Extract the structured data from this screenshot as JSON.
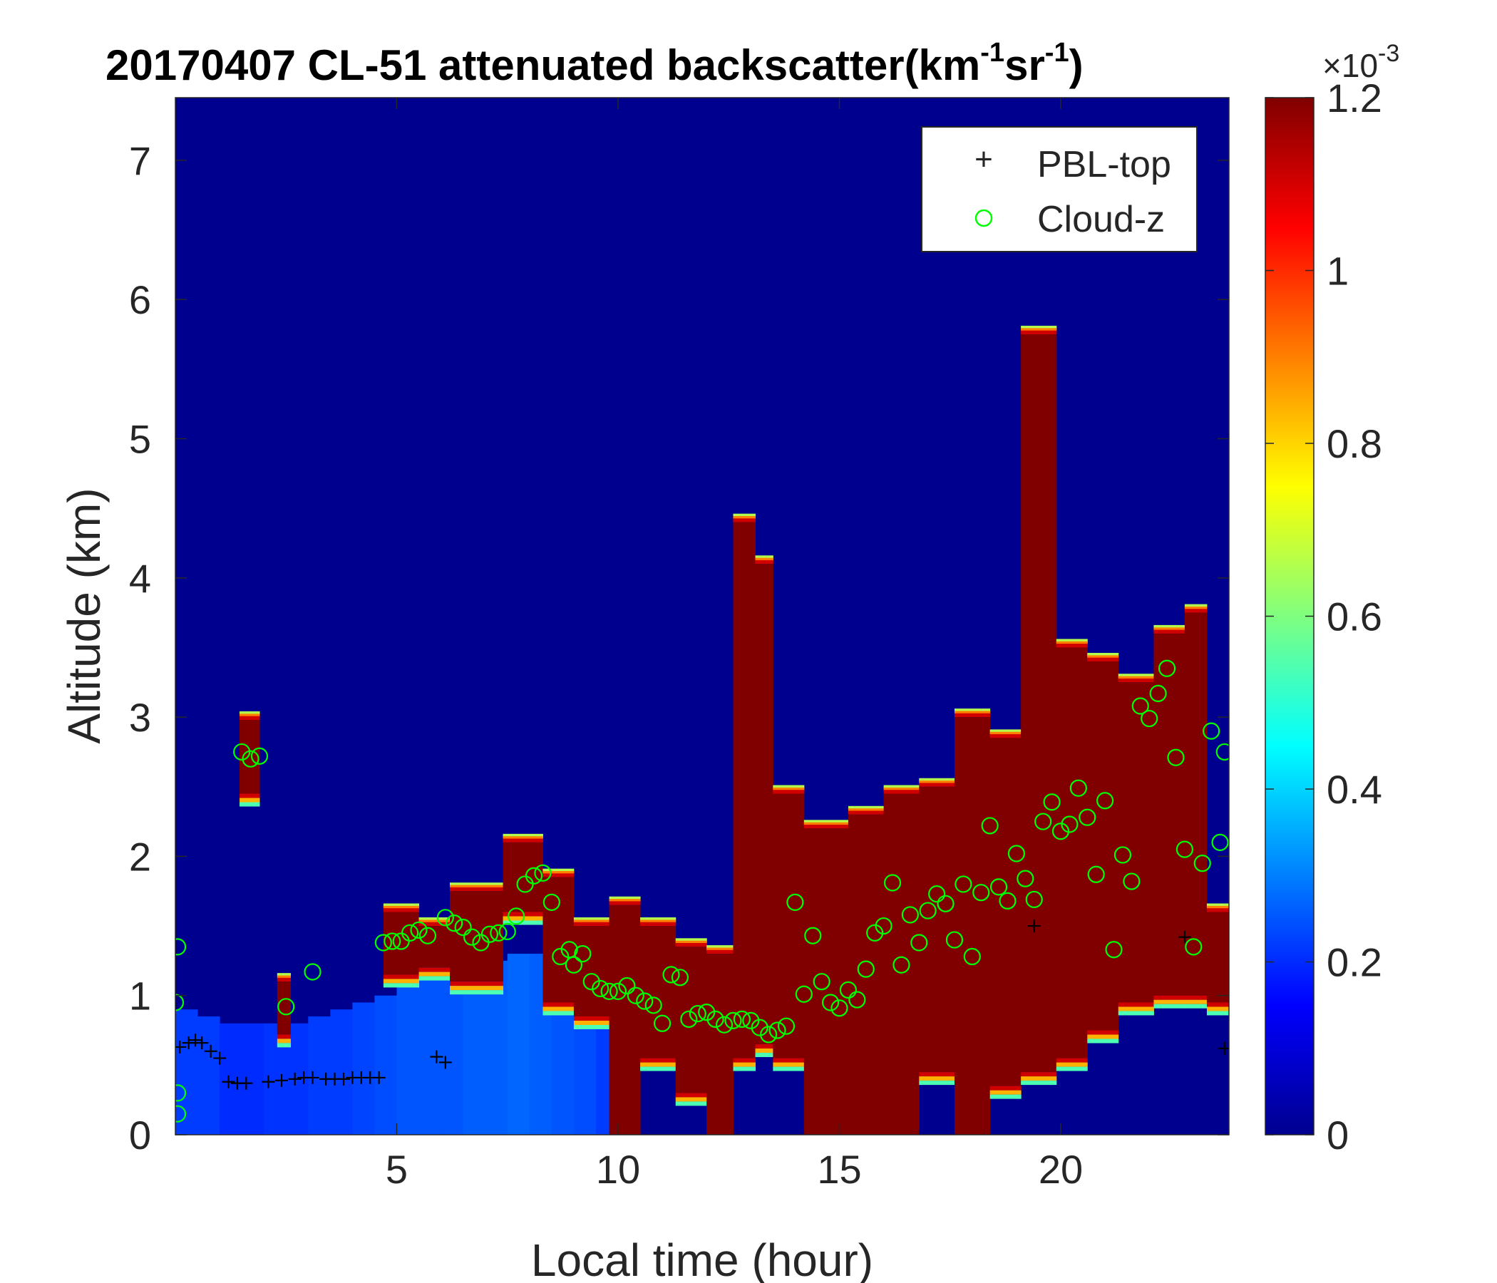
{
  "chart_data": {
    "type": "heatmap",
    "title_main": "20170407  CL-51 attenuated backscatter(km",
    "title_sup1": "-1",
    "title_mid": "sr",
    "title_sup2": "-1",
    "title_end": ")",
    "xlabel": "Local time (hour)",
    "ylabel": "Altitude (km)",
    "xlim": [
      0,
      23.8
    ],
    "ylim": [
      0,
      7.45
    ],
    "x_ticks": [
      5,
      10,
      15,
      20
    ],
    "y_ticks": [
      0,
      1,
      2,
      3,
      4,
      5,
      6,
      7
    ],
    "x_tick_labels": [
      "5",
      "10",
      "15",
      "20"
    ],
    "y_tick_labels": [
      "0",
      "1",
      "2",
      "3",
      "4",
      "5",
      "6",
      "7"
    ],
    "colorbar": {
      "min": 0,
      "max": 1.2,
      "colormap": "jet",
      "ticks": [
        0,
        0.2,
        0.4,
        0.6,
        0.8,
        1.0,
        1.2
      ],
      "tick_labels": [
        "0",
        "0.2",
        "0.4",
        "0.6",
        "0.8",
        "1",
        "1.2"
      ],
      "multiplier_base": "×10",
      "multiplier_exp": "-3"
    },
    "legend": {
      "placement": "top-right",
      "entries": [
        {
          "label": "PBL-top",
          "marker": "+",
          "color": "#000000"
        },
        {
          "label": "Cloud-z",
          "marker": "o",
          "color": "#00ff00"
        }
      ]
    },
    "background_level": 0.04,
    "aerosol_layer": [
      [
        0.0,
        0.9,
        0.22
      ],
      [
        0.5,
        0.85,
        0.22
      ],
      [
        1.0,
        0.8,
        0.2
      ],
      [
        1.5,
        0.8,
        0.2
      ],
      [
        2.0,
        0.8,
        0.21
      ],
      [
        2.5,
        0.8,
        0.21
      ],
      [
        3.0,
        0.85,
        0.22
      ],
      [
        3.5,
        0.9,
        0.22
      ],
      [
        4.0,
        0.95,
        0.23
      ],
      [
        4.5,
        1.0,
        0.24
      ],
      [
        5.0,
        1.1,
        0.25
      ],
      [
        5.5,
        1.2,
        0.25
      ],
      [
        6.0,
        1.25,
        0.25
      ],
      [
        6.5,
        1.25,
        0.26
      ],
      [
        7.0,
        1.25,
        0.26
      ],
      [
        7.5,
        1.3,
        0.27
      ],
      [
        8.0,
        1.3,
        0.26
      ],
      [
        8.5,
        1.2,
        0.25
      ],
      [
        9.0,
        1.0,
        0.24
      ],
      [
        9.5,
        0.8,
        0.22
      ],
      [
        10.0,
        0.0,
        0.0
      ]
    ],
    "high_backscatter_regions": [
      {
        "x0": 1.45,
        "x1": 1.9,
        "y0": 2.45,
        "y1": 2.98
      },
      {
        "x0": 2.3,
        "x1": 2.6,
        "y0": 0.72,
        "y1": 1.1
      },
      {
        "x0": 4.7,
        "x1": 5.5,
        "y0": 1.15,
        "y1": 1.6
      },
      {
        "x0": 5.5,
        "x1": 6.2,
        "y0": 1.2,
        "y1": 1.5
      },
      {
        "x0": 6.2,
        "x1": 7.4,
        "y0": 1.1,
        "y1": 1.75
      },
      {
        "x0": 7.4,
        "x1": 8.3,
        "y0": 1.6,
        "y1": 2.1
      },
      {
        "x0": 8.3,
        "x1": 9.0,
        "y0": 0.95,
        "y1": 1.85
      },
      {
        "x0": 9.0,
        "x1": 9.8,
        "y0": 0.85,
        "y1": 1.5
      },
      {
        "x0": 9.8,
        "x1": 10.5,
        "y0": 0.0,
        "y1": 1.65
      },
      {
        "x0": 10.5,
        "x1": 11.3,
        "y0": 0.55,
        "y1": 1.5
      },
      {
        "x0": 11.3,
        "x1": 12.0,
        "y0": 0.3,
        "y1": 1.35
      },
      {
        "x0": 12.0,
        "x1": 12.6,
        "y0": 0.0,
        "y1": 1.3
      },
      {
        "x0": 12.6,
        "x1": 13.1,
        "y0": 0.55,
        "y1": 4.4
      },
      {
        "x0": 13.1,
        "x1": 13.5,
        "y0": 0.65,
        "y1": 4.1
      },
      {
        "x0": 13.5,
        "x1": 14.2,
        "y0": 0.55,
        "y1": 2.45
      },
      {
        "x0": 14.2,
        "x1": 15.2,
        "y0": 0.0,
        "y1": 2.2
      },
      {
        "x0": 15.2,
        "x1": 16.0,
        "y0": 0.0,
        "y1": 2.3
      },
      {
        "x0": 16.0,
        "x1": 16.8,
        "y0": 0.0,
        "y1": 2.45
      },
      {
        "x0": 16.8,
        "x1": 17.6,
        "y0": 0.45,
        "y1": 2.5
      },
      {
        "x0": 17.6,
        "x1": 18.4,
        "y0": 0.0,
        "y1": 3.0
      },
      {
        "x0": 18.4,
        "x1": 19.1,
        "y0": 0.35,
        "y1": 2.85
      },
      {
        "x0": 19.1,
        "x1": 19.9,
        "y0": 0.45,
        "y1": 5.75
      },
      {
        "x0": 19.9,
        "x1": 20.6,
        "y0": 0.55,
        "y1": 3.5
      },
      {
        "x0": 20.6,
        "x1": 21.3,
        "y0": 0.75,
        "y1": 3.4
      },
      {
        "x0": 21.3,
        "x1": 22.1,
        "y0": 0.95,
        "y1": 3.25
      },
      {
        "x0": 22.1,
        "x1": 22.8,
        "y0": 1.0,
        "y1": 3.6
      },
      {
        "x0": 22.8,
        "x1": 23.3,
        "y0": 1.0,
        "y1": 3.75
      },
      {
        "x0": 23.3,
        "x1": 23.8,
        "y0": 0.95,
        "y1": 1.6
      }
    ],
    "pbl_top": [
      [
        0.1,
        0.63
      ],
      [
        0.3,
        0.66
      ],
      [
        0.45,
        0.68
      ],
      [
        0.6,
        0.66
      ],
      [
        0.8,
        0.6
      ],
      [
        1.0,
        0.55
      ],
      [
        1.2,
        0.38
      ],
      [
        1.4,
        0.37
      ],
      [
        1.6,
        0.37
      ],
      [
        2.1,
        0.38
      ],
      [
        2.4,
        0.39
      ],
      [
        2.7,
        0.4
      ],
      [
        2.9,
        0.41
      ],
      [
        3.1,
        0.41
      ],
      [
        3.4,
        0.4
      ],
      [
        3.6,
        0.4
      ],
      [
        3.8,
        0.4
      ],
      [
        4.0,
        0.41
      ],
      [
        4.2,
        0.41
      ],
      [
        4.4,
        0.41
      ],
      [
        4.6,
        0.41
      ],
      [
        5.9,
        0.56
      ],
      [
        6.1,
        0.52
      ],
      [
        19.4,
        1.5
      ],
      [
        22.8,
        1.42
      ],
      [
        23.7,
        0.62
      ]
    ],
    "cloud_z": [
      [
        0.0,
        0.95
      ],
      [
        0.05,
        0.3
      ],
      [
        0.05,
        0.15
      ],
      [
        0.05,
        1.35
      ],
      [
        1.5,
        2.75
      ],
      [
        1.7,
        2.7
      ],
      [
        1.9,
        2.72
      ],
      [
        2.5,
        0.92
      ],
      [
        3.1,
        1.17
      ],
      [
        4.7,
        1.38
      ],
      [
        4.9,
        1.39
      ],
      [
        5.1,
        1.39
      ],
      [
        5.3,
        1.45
      ],
      [
        5.5,
        1.47
      ],
      [
        5.7,
        1.43
      ],
      [
        6.1,
        1.56
      ],
      [
        6.3,
        1.52
      ],
      [
        6.5,
        1.49
      ],
      [
        6.7,
        1.42
      ],
      [
        6.9,
        1.38
      ],
      [
        7.1,
        1.44
      ],
      [
        7.3,
        1.45
      ],
      [
        7.5,
        1.46
      ],
      [
        7.7,
        1.57
      ],
      [
        7.9,
        1.8
      ],
      [
        8.1,
        1.86
      ],
      [
        8.3,
        1.88
      ],
      [
        8.5,
        1.67
      ],
      [
        8.7,
        1.28
      ],
      [
        8.9,
        1.33
      ],
      [
        9.0,
        1.22
      ],
      [
        9.2,
        1.3
      ],
      [
        9.4,
        1.1
      ],
      [
        9.6,
        1.05
      ],
      [
        9.8,
        1.03
      ],
      [
        10.0,
        1.03
      ],
      [
        10.2,
        1.07
      ],
      [
        10.4,
        1.0
      ],
      [
        10.6,
        0.96
      ],
      [
        10.8,
        0.93
      ],
      [
        11.0,
        0.8
      ],
      [
        11.2,
        1.15
      ],
      [
        11.4,
        1.13
      ],
      [
        11.6,
        0.83
      ],
      [
        11.8,
        0.87
      ],
      [
        12.0,
        0.88
      ],
      [
        12.2,
        0.83
      ],
      [
        12.4,
        0.79
      ],
      [
        12.6,
        0.82
      ],
      [
        12.8,
        0.83
      ],
      [
        13.0,
        0.82
      ],
      [
        13.2,
        0.77
      ],
      [
        13.4,
        0.72
      ],
      [
        13.6,
        0.75
      ],
      [
        13.8,
        0.78
      ],
      [
        14.0,
        1.67
      ],
      [
        14.2,
        1.01
      ],
      [
        14.4,
        1.43
      ],
      [
        14.6,
        1.1
      ],
      [
        14.8,
        0.95
      ],
      [
        15.0,
        0.91
      ],
      [
        15.2,
        1.04
      ],
      [
        15.4,
        0.97
      ],
      [
        15.6,
        1.19
      ],
      [
        15.8,
        1.45
      ],
      [
        16.0,
        1.5
      ],
      [
        16.2,
        1.81
      ],
      [
        16.4,
        1.22
      ],
      [
        16.6,
        1.58
      ],
      [
        16.8,
        1.38
      ],
      [
        17.0,
        1.61
      ],
      [
        17.2,
        1.73
      ],
      [
        17.4,
        1.66
      ],
      [
        17.6,
        1.4
      ],
      [
        17.8,
        1.8
      ],
      [
        18.0,
        1.28
      ],
      [
        18.2,
        1.74
      ],
      [
        18.4,
        2.22
      ],
      [
        18.6,
        1.78
      ],
      [
        18.8,
        1.68
      ],
      [
        19.0,
        2.02
      ],
      [
        19.2,
        1.84
      ],
      [
        19.4,
        1.69
      ],
      [
        19.6,
        2.25
      ],
      [
        19.8,
        2.39
      ],
      [
        20.0,
        2.18
      ],
      [
        20.2,
        2.23
      ],
      [
        20.4,
        2.49
      ],
      [
        20.6,
        2.28
      ],
      [
        20.8,
        1.87
      ],
      [
        21.0,
        2.4
      ],
      [
        21.2,
        1.33
      ],
      [
        21.4,
        2.01
      ],
      [
        21.6,
        1.82
      ],
      [
        21.8,
        3.08
      ],
      [
        22.0,
        2.99
      ],
      [
        22.2,
        3.17
      ],
      [
        22.4,
        3.35
      ],
      [
        22.6,
        2.71
      ],
      [
        22.8,
        2.05
      ],
      [
        23.0,
        1.35
      ],
      [
        23.2,
        1.95
      ],
      [
        23.4,
        2.9
      ],
      [
        23.6,
        2.1
      ],
      [
        23.7,
        2.75
      ]
    ]
  }
}
